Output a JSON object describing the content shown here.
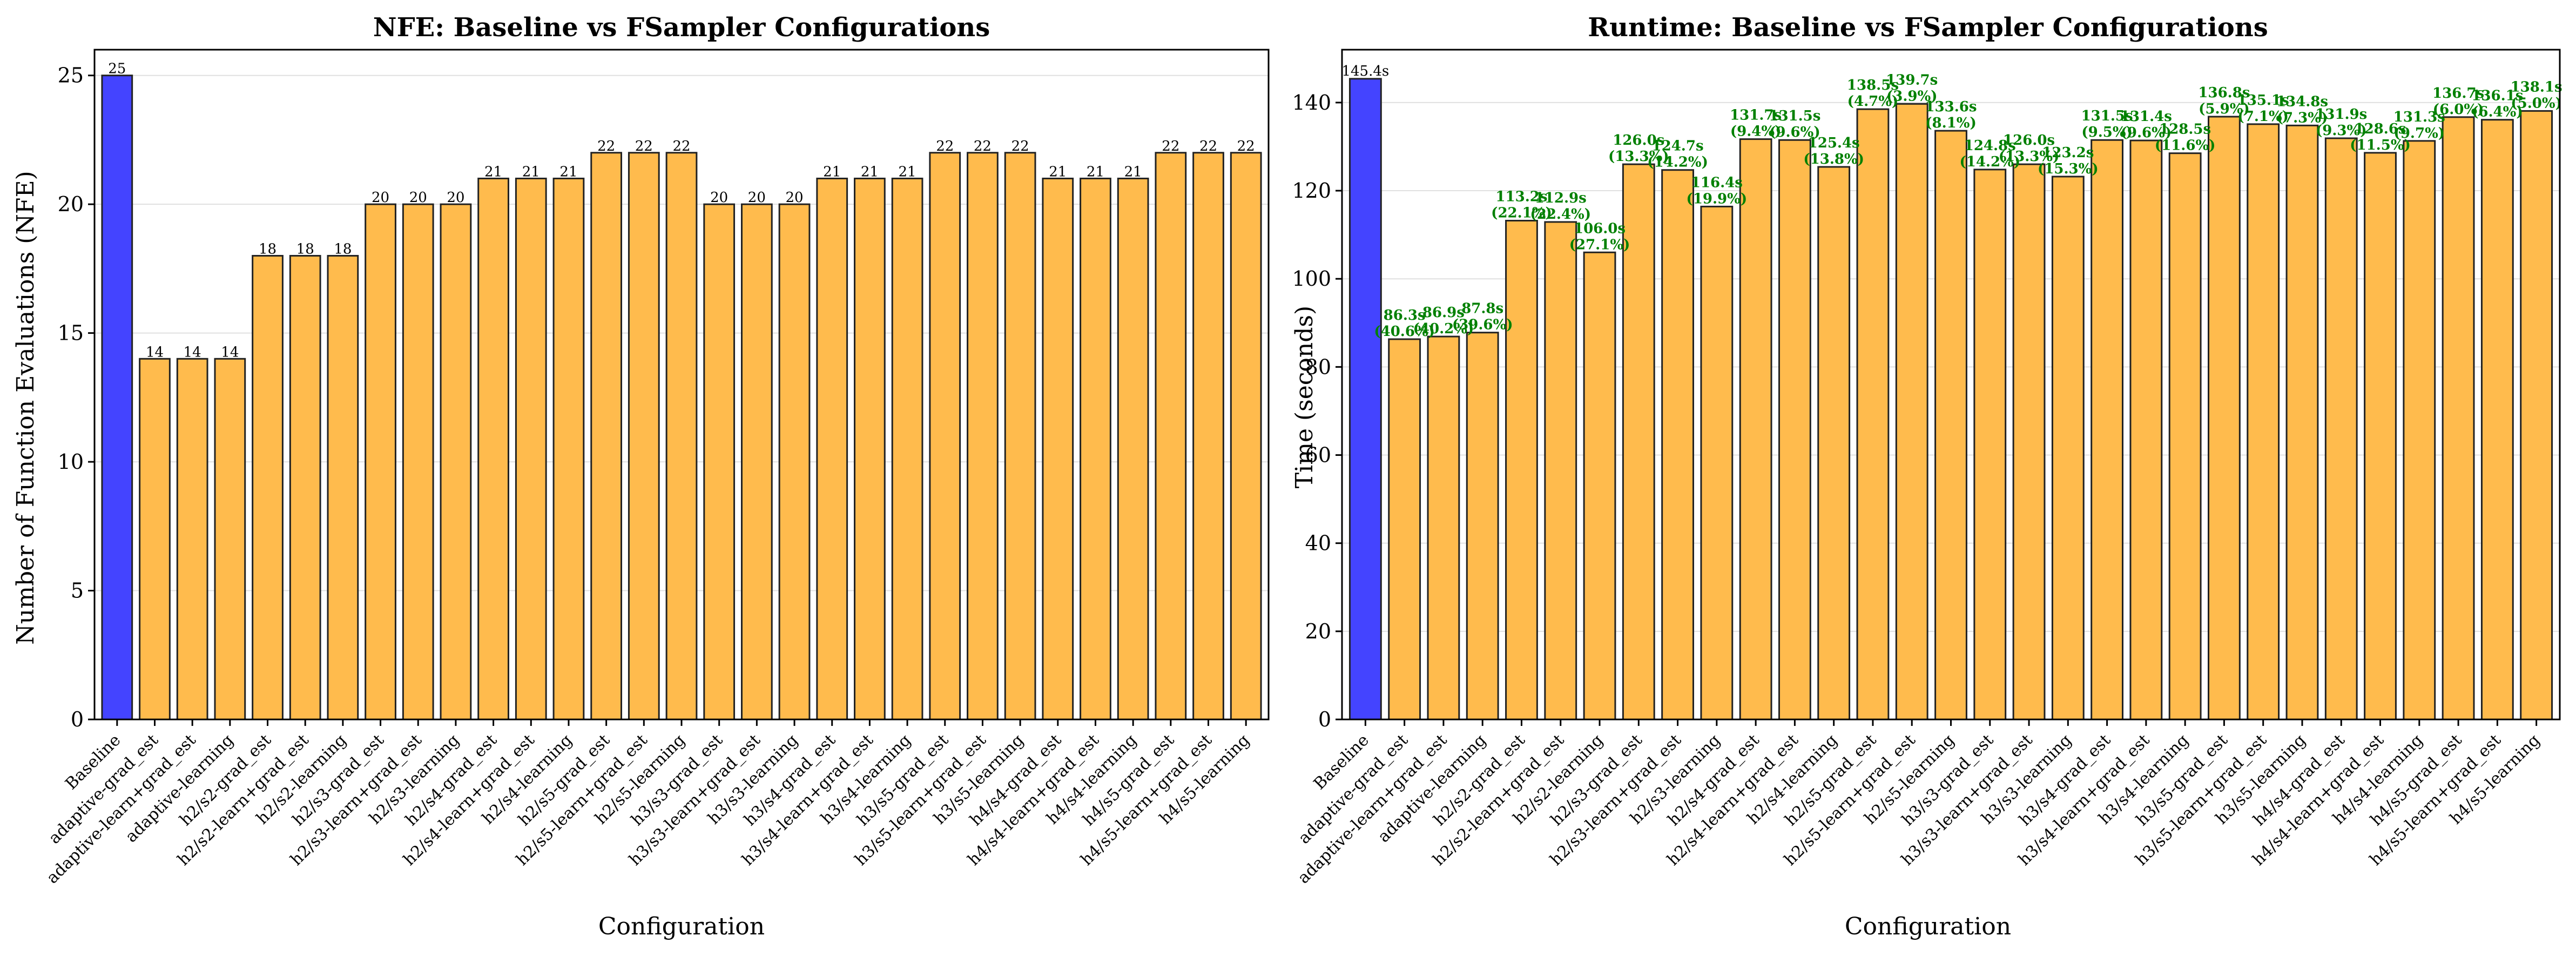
{
  "colors": {
    "baseline": "#4444FF",
    "fsampler": "#FFBB4D",
    "edge": "#222222",
    "saving_label": "#008000",
    "grid": "#e0e0e0"
  },
  "chart_data": [
    {
      "type": "bar",
      "title": "NFE: Baseline vs FSampler Configurations",
      "xlabel": "Configuration",
      "ylabel": "Number of Function Evaluations (NFE)",
      "ylim": [
        0,
        26
      ],
      "yticks": [
        0,
        5,
        10,
        15,
        20,
        25
      ],
      "grid": "y",
      "categories": [
        "Baseline",
        "adaptive-grad_est",
        "adaptive-learn+grad_est",
        "adaptive-learning",
        "h2/s2-grad_est",
        "h2/s2-learn+grad_est",
        "h2/s2-learning",
        "h2/s3-grad_est",
        "h2/s3-learn+grad_est",
        "h2/s3-learning",
        "h2/s4-grad_est",
        "h2/s4-learn+grad_est",
        "h2/s4-learning",
        "h2/s5-grad_est",
        "h2/s5-learn+grad_est",
        "h2/s5-learning",
        "h3/s3-grad_est",
        "h3/s3-learn+grad_est",
        "h3/s3-learning",
        "h3/s4-grad_est",
        "h3/s4-learn+grad_est",
        "h3/s4-learning",
        "h3/s5-grad_est",
        "h3/s5-learn+grad_est",
        "h3/s5-learning",
        "h4/s4-grad_est",
        "h4/s4-learn+grad_est",
        "h4/s4-learning",
        "h4/s5-grad_est",
        "h4/s5-learn+grad_est",
        "h4/s5-learning"
      ],
      "values": [
        25,
        14,
        14,
        14,
        18,
        18,
        18,
        20,
        20,
        20,
        21,
        21,
        21,
        22,
        22,
        22,
        20,
        20,
        20,
        21,
        21,
        21,
        22,
        22,
        22,
        21,
        21,
        21,
        22,
        22,
        22
      ],
      "labels": [
        "25",
        "14",
        "14",
        "14",
        "18",
        "18",
        "18",
        "20",
        "20",
        "20",
        "21",
        "21",
        "21",
        "22",
        "22",
        "22",
        "20",
        "20",
        "20",
        "21",
        "21",
        "21",
        "22",
        "22",
        "22",
        "21",
        "21",
        "21",
        "22",
        "22",
        "22"
      ]
    },
    {
      "type": "bar",
      "title": "Runtime: Baseline vs FSampler Configurations",
      "xlabel": "Configuration",
      "ylabel": "Time (seconds)",
      "ylim": [
        0,
        152
      ],
      "yticks": [
        0,
        20,
        40,
        60,
        80,
        100,
        120,
        140
      ],
      "grid": "y",
      "categories": [
        "Baseline",
        "adaptive-grad_est",
        "adaptive-learn+grad_est",
        "adaptive-learning",
        "h2/s2-grad_est",
        "h2/s2-learn+grad_est",
        "h2/s2-learning",
        "h2/s3-grad_est",
        "h2/s3-learn+grad_est",
        "h2/s3-learning",
        "h2/s4-grad_est",
        "h2/s4-learn+grad_est",
        "h2/s4-learning",
        "h2/s5-grad_est",
        "h2/s5-learn+grad_est",
        "h2/s5-learning",
        "h3/s3-grad_est",
        "h3/s3-learn+grad_est",
        "h3/s3-learning",
        "h3/s4-grad_est",
        "h3/s4-learn+grad_est",
        "h3/s4-learning",
        "h3/s5-grad_est",
        "h3/s5-learn+grad_est",
        "h3/s5-learning",
        "h4/s4-grad_est",
        "h4/s4-learn+grad_est",
        "h4/s4-learning",
        "h4/s5-grad_est",
        "h4/s5-learn+grad_est",
        "h4/s5-learning"
      ],
      "values": [
        145.4,
        86.3,
        86.9,
        87.8,
        113.2,
        112.9,
        106.0,
        126.0,
        124.7,
        116.4,
        131.7,
        131.5,
        125.4,
        138.5,
        139.7,
        133.6,
        124.8,
        126.0,
        123.2,
        131.5,
        131.4,
        128.5,
        136.8,
        135.1,
        134.8,
        131.9,
        128.6,
        131.3,
        136.7,
        136.1,
        138.1
      ],
      "labels": [
        [
          "145.4s"
        ],
        [
          "86.3s",
          "(40.6%)"
        ],
        [
          "86.9s",
          "(40.2%)"
        ],
        [
          "87.8s",
          "(39.6%)"
        ],
        [
          "113.2s",
          "(22.1%)"
        ],
        [
          "112.9s",
          "(22.4%)"
        ],
        [
          "106.0s",
          "(27.1%)"
        ],
        [
          "126.0s",
          "(13.3%)"
        ],
        [
          "124.7s",
          "(14.2%)"
        ],
        [
          "116.4s",
          "(19.9%)"
        ],
        [
          "131.7s",
          "(9.4%)"
        ],
        [
          "131.5s",
          "(9.6%)"
        ],
        [
          "125.4s",
          "(13.8%)"
        ],
        [
          "138.5s",
          "(4.7%)"
        ],
        [
          "139.7s",
          "(3.9%)"
        ],
        [
          "133.6s",
          "(8.1%)"
        ],
        [
          "124.8s",
          "(14.2%)"
        ],
        [
          "126.0s",
          "(13.3%)"
        ],
        [
          "123.2s",
          "(15.3%)"
        ],
        [
          "131.5s",
          "(9.5%)"
        ],
        [
          "131.4s",
          "(9.6%)"
        ],
        [
          "128.5s",
          "(11.6%)"
        ],
        [
          "136.8s",
          "(5.9%)"
        ],
        [
          "135.1s",
          "(7.1%)"
        ],
        [
          "134.8s",
          "(7.3%)"
        ],
        [
          "131.9s",
          "(9.3%)"
        ],
        [
          "128.6s",
          "(11.5%)"
        ],
        [
          "131.3s",
          "(9.7%)"
        ],
        [
          "136.7s",
          "(6.0%)"
        ],
        [
          "136.1s",
          "(6.4%)"
        ],
        [
          "138.1s",
          "(5.0%)"
        ]
      ]
    }
  ]
}
